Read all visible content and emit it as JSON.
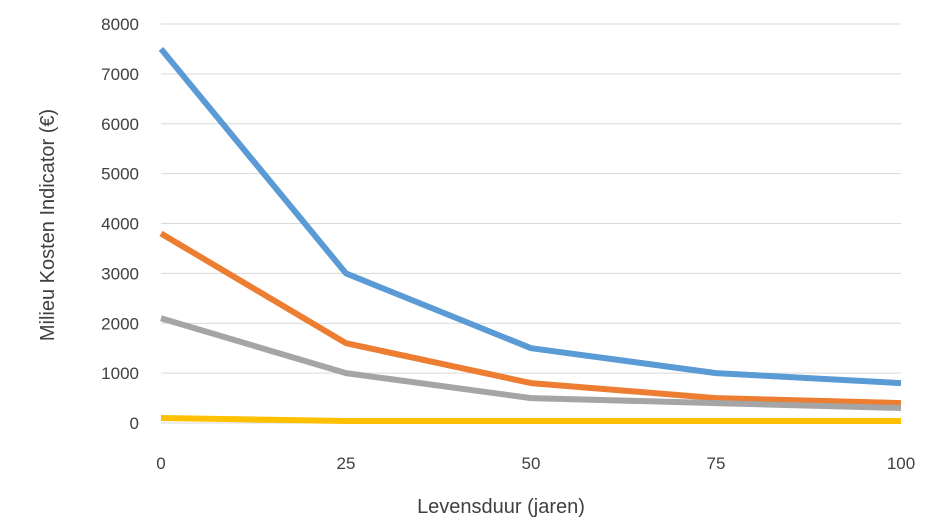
{
  "chart_data": {
    "type": "line",
    "xlabel": "Levensduur (jaren)",
    "ylabel": "Milieu Kosten Indicator (€)",
    "x": [
      0,
      25,
      50,
      75,
      100
    ],
    "xticks": [
      "0",
      "25",
      "50",
      "75",
      "100"
    ],
    "ylim": [
      0,
      8000
    ],
    "yticks": [
      "0",
      "1000",
      "2000",
      "3000",
      "4000",
      "5000",
      "6000",
      "7000",
      "8000"
    ],
    "grid": true,
    "legend": "none",
    "series": [
      {
        "color": "#5b9bd5",
        "values": [
          7500,
          3000,
          1500,
          1000,
          800
        ]
      },
      {
        "color": "#ed7d31",
        "values": [
          3800,
          1600,
          800,
          500,
          400
        ]
      },
      {
        "color": "#a5a5a5",
        "values": [
          2100,
          1000,
          500,
          400,
          300
        ]
      },
      {
        "color": "#ffc000",
        "values": [
          100,
          40,
          40,
          40,
          40
        ]
      }
    ]
  }
}
